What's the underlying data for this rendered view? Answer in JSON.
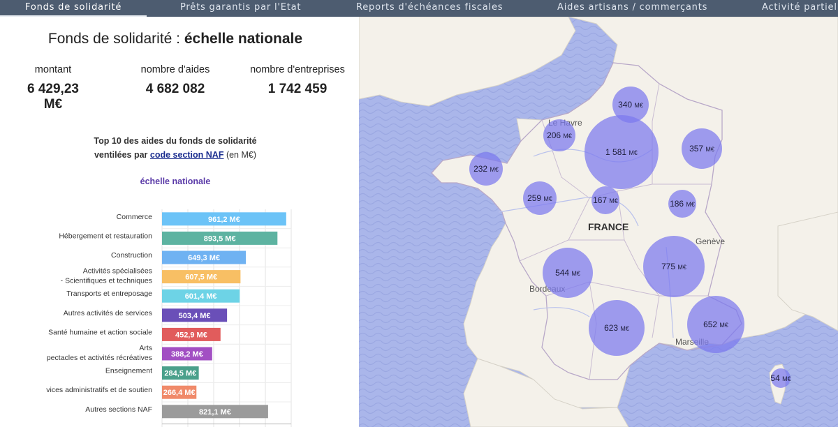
{
  "nav": {
    "tabs": [
      {
        "label": "Fonds de solidarité",
        "active": true
      },
      {
        "label": "Prêts garantis par l'Etat",
        "active": false
      },
      {
        "label": "Reports d'échéances fiscales",
        "active": false
      },
      {
        "label": "Aides artisans / commerçants",
        "active": false
      },
      {
        "label": "Activité partielle",
        "active": false
      }
    ]
  },
  "header": {
    "title_prefix": "Fonds de solidarité : ",
    "title_scope": "échelle nationale"
  },
  "stats": [
    {
      "label": "montant",
      "value": "6 429,23 M€"
    },
    {
      "label": "nombre d'aides",
      "value": "4 682 082"
    },
    {
      "label": "nombre d'entreprises",
      "value": "1 742 459"
    }
  ],
  "chart_header": {
    "line1": "Top 10 des aides du fonds de solidarité",
    "line2_prefix": "ventilées par ",
    "line2_link": "code section NAF",
    "line2_suffix": " (en M€)",
    "scope": "échelle nationale"
  },
  "chart_data": {
    "type": "bar",
    "orientation": "horizontal",
    "categories": [
      [
        "Commerce"
      ],
      [
        "Hébergement et restauration"
      ],
      [
        "Construction"
      ],
      [
        "Activités spécialisées",
        "- Scientifiques et techniques"
      ],
      [
        "Transports et entreposage"
      ],
      [
        "Autres activités de services"
      ],
      [
        "Santé humaine et action sociale"
      ],
      [
        "Arts",
        "pectacles et activités récréatives"
      ],
      [
        "Enseignement"
      ],
      [
        "vices administratifs et de soutien"
      ],
      [
        "Autres sections NAF"
      ]
    ],
    "values": [
      961.2,
      893.5,
      649.3,
      607.5,
      601.4,
      503.4,
      452.9,
      388.2,
      284.5,
      266.4,
      821.1
    ],
    "value_labels": [
      "961,2 M€",
      "893,5 M€",
      "649,3 M€",
      "607,5 M€",
      "601,4 M€",
      "503,4 M€",
      "452,9 M€",
      "388,2 M€",
      "284,5 M€",
      "266,4 M€",
      "821,1 M€"
    ],
    "colors": [
      "#6cc3f7",
      "#5db3a1",
      "#6fb2f2",
      "#f8bf64",
      "#6dd3e6",
      "#6a4fb8",
      "#e15c5c",
      "#a24fc3",
      "#4aa08b",
      "#f08a6a",
      "#9b9b9b"
    ],
    "xlim": [
      0,
      1000
    ],
    "grid": true
  },
  "map": {
    "country_label": "FRANCE",
    "cities": [
      "Le Havre",
      "Genève",
      "Bordeaux",
      "Marseille"
    ],
    "bubbles": [
      {
        "label": "340",
        "unit": "M€"
      },
      {
        "label": "206",
        "unit": "M€"
      },
      {
        "label": "1 581",
        "unit": "M€"
      },
      {
        "label": "357",
        "unit": "M€"
      },
      {
        "label": "232",
        "unit": "M€"
      },
      {
        "label": "259",
        "unit": "M€"
      },
      {
        "label": "167",
        "unit": "M€"
      },
      {
        "label": "186",
        "unit": "M€"
      },
      {
        "label": "544",
        "unit": "M€"
      },
      {
        "label": "775",
        "unit": "M€"
      },
      {
        "label": "623",
        "unit": "M€"
      },
      {
        "label": "652",
        "unit": "M€"
      },
      {
        "label": "54",
        "unit": "M€"
      }
    ],
    "colors": {
      "sea": "#aab6ea",
      "land": "#f4f1ea",
      "bubble": "#7b78ee"
    }
  }
}
